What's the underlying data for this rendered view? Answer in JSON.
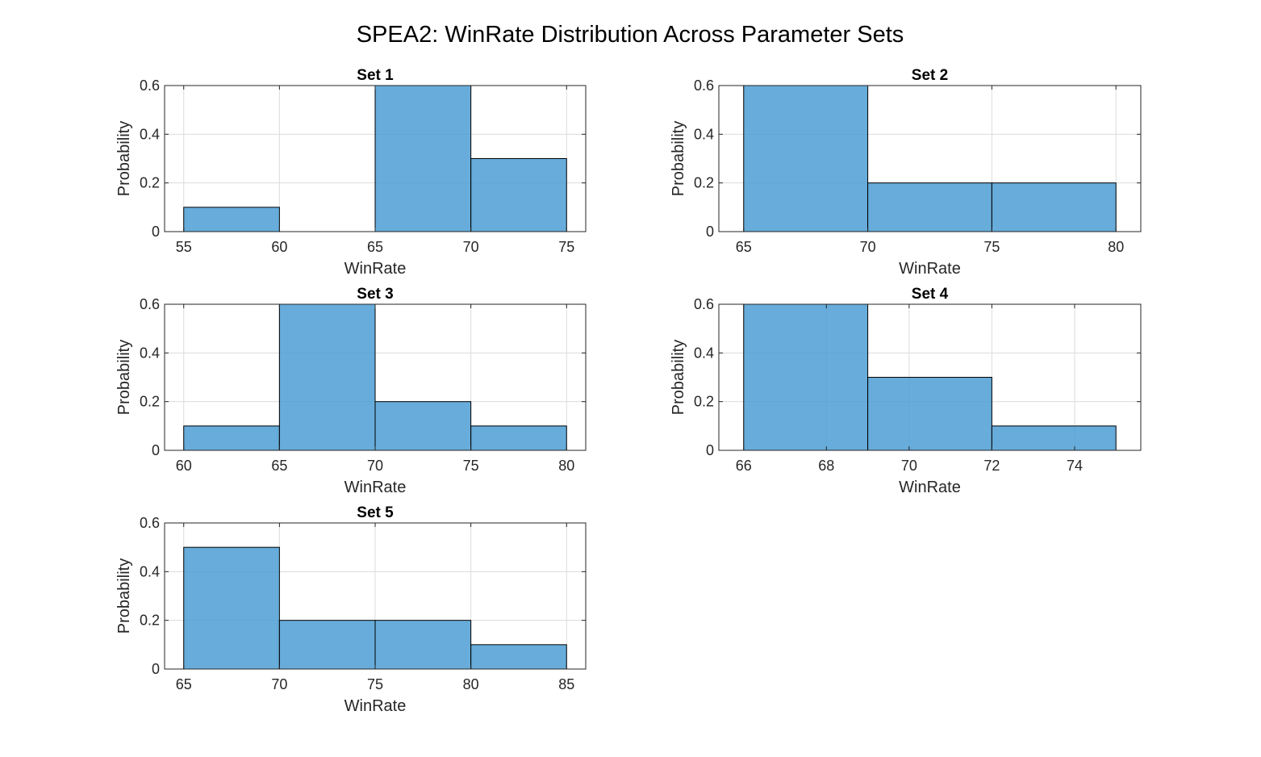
{
  "figure": {
    "title": "SPEA2: WinRate Distribution Across Parameter Sets"
  },
  "colors": {
    "bar_fill": "#4c9ed4",
    "bar_edge": "#000000",
    "grid": "#dcdcdc",
    "axis": "#262626",
    "background": "#ffffff"
  },
  "chart_data": [
    {
      "type": "bar",
      "title": "Set 1",
      "xlabel": "WinRate",
      "ylabel": "Probability",
      "xlim": [
        54,
        76
      ],
      "ylim": [
        0,
        0.6
      ],
      "xticks": [
        55,
        60,
        65,
        70,
        75
      ],
      "yticks": [
        0,
        0.2,
        0.4,
        0.6
      ],
      "ytick_labels": [
        "0",
        "0.2",
        "0.4",
        "0.6"
      ],
      "grid": true,
      "bin_edges": [
        55,
        60,
        65,
        70,
        75
      ],
      "values": [
        0.1,
        0.0,
        0.6,
        0.3
      ]
    },
    {
      "type": "bar",
      "title": "Set 2",
      "xlabel": "WinRate",
      "ylabel": "Probability",
      "xlim": [
        64,
        81
      ],
      "ylim": [
        0,
        0.6
      ],
      "xticks": [
        65,
        70,
        75,
        80
      ],
      "yticks": [
        0,
        0.2,
        0.4,
        0.6
      ],
      "ytick_labels": [
        "0",
        "0.2",
        "0.4",
        "0.6"
      ],
      "grid": true,
      "bin_edges": [
        65,
        70,
        75,
        80
      ],
      "values": [
        0.6,
        0.2,
        0.2
      ]
    },
    {
      "type": "bar",
      "title": "Set 3",
      "xlabel": "WinRate",
      "ylabel": "Probability",
      "xlim": [
        59,
        81
      ],
      "ylim": [
        0,
        0.6
      ],
      "xticks": [
        60,
        65,
        70,
        75,
        80
      ],
      "yticks": [
        0,
        0.2,
        0.4,
        0.6
      ],
      "ytick_labels": [
        "0",
        "0.2",
        "0.4",
        "0.6"
      ],
      "grid": true,
      "bin_edges": [
        60,
        65,
        70,
        75,
        80
      ],
      "values": [
        0.1,
        0.6,
        0.2,
        0.1
      ]
    },
    {
      "type": "bar",
      "title": "Set 4",
      "xlabel": "WinRate",
      "ylabel": "Probability",
      "xlim": [
        65.4,
        75.6
      ],
      "ylim": [
        0,
        0.6
      ],
      "xticks": [
        66,
        68,
        70,
        72,
        74
      ],
      "yticks": [
        0,
        0.2,
        0.4,
        0.6
      ],
      "ytick_labels": [
        "0",
        "0.2",
        "0.4",
        "0.6"
      ],
      "grid": true,
      "bin_edges": [
        66,
        69,
        72,
        75
      ],
      "values": [
        0.6,
        0.3,
        0.1
      ]
    },
    {
      "type": "bar",
      "title": "Set 5",
      "xlabel": "WinRate",
      "ylabel": "Probability",
      "xlim": [
        64,
        86
      ],
      "ylim": [
        0,
        0.6
      ],
      "xticks": [
        65,
        70,
        75,
        80,
        85
      ],
      "yticks": [
        0,
        0.2,
        0.4,
        0.6
      ],
      "ytick_labels": [
        "0",
        "0.2",
        "0.4",
        "0.6"
      ],
      "grid": true,
      "bin_edges": [
        65,
        70,
        75,
        80,
        85
      ],
      "values": [
        0.5,
        0.2,
        0.2,
        0.1
      ]
    }
  ]
}
